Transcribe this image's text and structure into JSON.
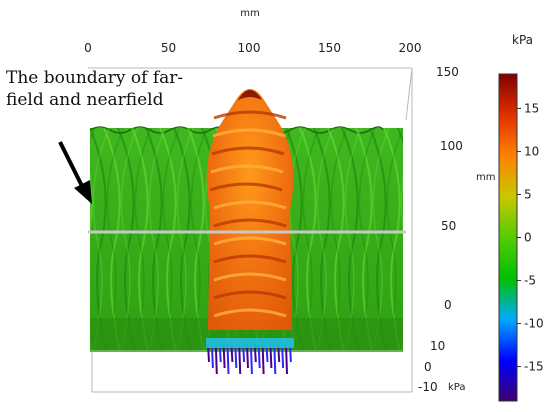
{
  "chart_data": {
    "type": "surface",
    "x_axis": {
      "label": "mm",
      "ticks": [
        "0",
        "50",
        "100",
        "150",
        "200"
      ],
      "range": [
        0,
        200
      ]
    },
    "y_axis": {
      "label": "mm",
      "ticks": [
        "150",
        "100",
        "50",
        "0"
      ],
      "range": [
        0,
        150
      ]
    },
    "z_axis": {
      "label": "kPa",
      "ticks": [
        "10",
        "0",
        "-10"
      ]
    },
    "colorbar": {
      "label": "kPa",
      "ticks": [
        "15",
        "10",
        "5",
        "0",
        "-5",
        "-10",
        "-15"
      ],
      "tick_values": [
        15,
        10,
        5,
        0,
        -5,
        -10,
        -15
      ],
      "min": -19,
      "max": 19,
      "colors": [
        "#3a0070",
        "#0000ff",
        "#00aaff",
        "#00c000",
        "#55cc00",
        "#c8c800",
        "#ff8000",
        "#e03000",
        "#800000"
      ]
    },
    "annotation": {
      "lines": [
        "The boundary of far-",
        "field and nearfield"
      ]
    },
    "boundary_y_mm": 50
  }
}
